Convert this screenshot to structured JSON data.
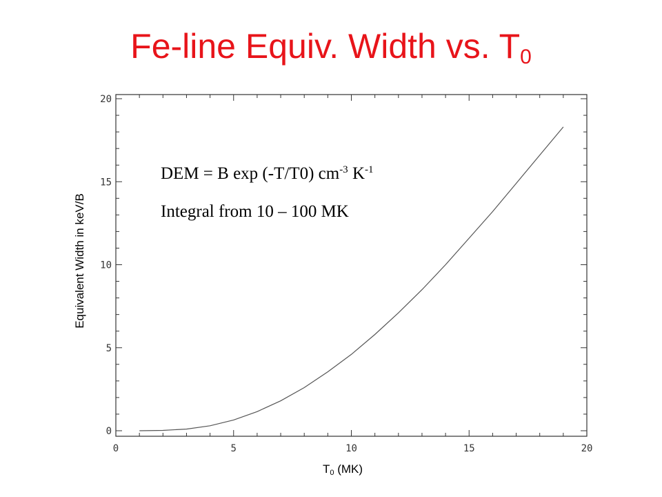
{
  "title": {
    "main": "Fe-line Equiv. Width vs. T",
    "subscript": "0"
  },
  "annotations": {
    "line1": {
      "text": "DEM = B exp (-T/T0) cm",
      "exp1": "-3",
      "unit": " K",
      "exp2": "-1"
    },
    "line2": "Integral from 10 – 100 MK"
  },
  "colors": {
    "title": "#e8141a",
    "curve": "#555555",
    "axes": "#333333"
  },
  "chart_data": {
    "type": "line",
    "xlabel": {
      "main": "T",
      "subscript": "0",
      "suffix": " (MK)"
    },
    "ylabel": "Equivalent Width in keV/B",
    "xlim": [
      0,
      20
    ],
    "ylim": [
      0,
      20
    ],
    "xticks": [
      0,
      5,
      10,
      15,
      20
    ],
    "yticks": [
      0,
      5,
      10,
      15,
      20
    ],
    "xtick_labels": [
      "0",
      "5",
      "10",
      "15",
      "20"
    ],
    "ytick_labels": [
      "0",
      "5",
      "10",
      "15",
      "20"
    ],
    "grid": false,
    "series": [
      {
        "x": [
          1,
          2,
          3,
          4,
          5,
          6,
          7,
          8,
          9,
          10,
          11,
          12,
          13,
          14,
          15,
          16,
          17,
          18,
          19
        ],
        "y": [
          0.0,
          0.02,
          0.1,
          0.3,
          0.65,
          1.15,
          1.8,
          2.6,
          3.55,
          4.6,
          5.8,
          7.1,
          8.5,
          10.0,
          11.6,
          13.2,
          14.9,
          16.6,
          18.3
        ]
      }
    ]
  }
}
